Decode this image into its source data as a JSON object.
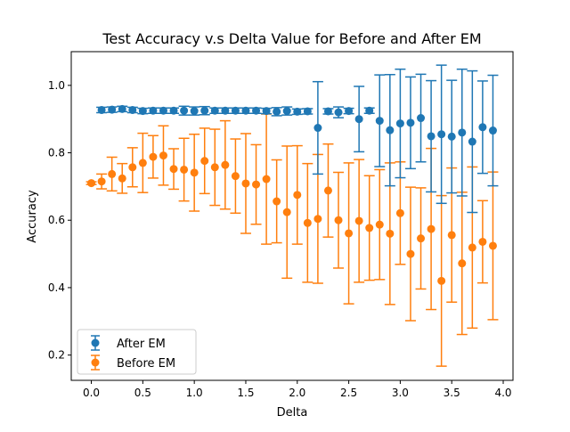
{
  "chart_data": {
    "type": "errorbar",
    "title": "Test Accuracy v.s Delta Value for Before and After EM",
    "xlabel": "Delta",
    "ylabel": "Accuracy",
    "xlim": [
      -0.195,
      4.095
    ],
    "ylim": [
      0.125,
      1.1
    ],
    "xticks": [
      0.0,
      0.5,
      1.0,
      1.5,
      2.0,
      2.5,
      3.0,
      3.5,
      4.0
    ],
    "xtick_labels": [
      "0.0",
      "0.5",
      "1.0",
      "1.5",
      "2.0",
      "2.5",
      "3.0",
      "3.5",
      "4.0"
    ],
    "yticks": [
      0.2,
      0.4,
      0.6,
      0.8,
      1.0
    ],
    "ytick_labels": [
      "0.2",
      "0.4",
      "0.6",
      "0.8",
      "1.0"
    ],
    "grid": false,
    "legend_position": "lower-left",
    "series": [
      {
        "name": "After EM",
        "color": "#1f77b4",
        "points": [
          {
            "x": 0.1,
            "y": 0.927,
            "err": 0.008
          },
          {
            "x": 0.2,
            "y": 0.928,
            "err": 0.008
          },
          {
            "x": 0.3,
            "y": 0.93,
            "err": 0.008
          },
          {
            "x": 0.4,
            "y": 0.927,
            "err": 0.008
          },
          {
            "x": 0.5,
            "y": 0.924,
            "err": 0.008
          },
          {
            "x": 0.6,
            "y": 0.925,
            "err": 0.008
          },
          {
            "x": 0.7,
            "y": 0.925,
            "err": 0.008
          },
          {
            "x": 0.8,
            "y": 0.925,
            "err": 0.008
          },
          {
            "x": 0.9,
            "y": 0.925,
            "err": 0.013
          },
          {
            "x": 1.0,
            "y": 0.924,
            "err": 0.012
          },
          {
            "x": 1.1,
            "y": 0.925,
            "err": 0.012
          },
          {
            "x": 1.2,
            "y": 0.925,
            "err": 0.008
          },
          {
            "x": 1.3,
            "y": 0.925,
            "err": 0.008
          },
          {
            "x": 1.4,
            "y": 0.925,
            "err": 0.008
          },
          {
            "x": 1.5,
            "y": 0.925,
            "err": 0.008
          },
          {
            "x": 1.6,
            "y": 0.925,
            "err": 0.008
          },
          {
            "x": 1.7,
            "y": 0.924,
            "err": 0.008
          },
          {
            "x": 1.8,
            "y": 0.922,
            "err": 0.012
          },
          {
            "x": 1.9,
            "y": 0.924,
            "err": 0.012
          },
          {
            "x": 2.0,
            "y": 0.922,
            "err": 0.008
          },
          {
            "x": 2.1,
            "y": 0.923,
            "err": 0.008
          },
          {
            "x": 2.2,
            "y": 0.874,
            "err": 0.137
          },
          {
            "x": 2.3,
            "y": 0.923,
            "err": 0.008
          },
          {
            "x": 2.4,
            "y": 0.92,
            "err": 0.016
          },
          {
            "x": 2.5,
            "y": 0.924,
            "err": 0.008
          },
          {
            "x": 2.6,
            "y": 0.9,
            "err": 0.097
          },
          {
            "x": 2.7,
            "y": 0.925,
            "err": 0.008
          },
          {
            "x": 2.8,
            "y": 0.895,
            "err": 0.136
          },
          {
            "x": 2.9,
            "y": 0.867,
            "err": 0.165
          },
          {
            "x": 3.0,
            "y": 0.887,
            "err": 0.161
          },
          {
            "x": 3.1,
            "y": 0.889,
            "err": 0.136
          },
          {
            "x": 3.2,
            "y": 0.903,
            "err": 0.13
          },
          {
            "x": 3.3,
            "y": 0.849,
            "err": 0.165
          },
          {
            "x": 3.4,
            "y": 0.855,
            "err": 0.205
          },
          {
            "x": 3.5,
            "y": 0.848,
            "err": 0.167
          },
          {
            "x": 3.6,
            "y": 0.86,
            "err": 0.188
          },
          {
            "x": 3.7,
            "y": 0.833,
            "err": 0.21
          },
          {
            "x": 3.8,
            "y": 0.876,
            "err": 0.137
          },
          {
            "x": 3.9,
            "y": 0.866,
            "err": 0.164
          }
        ]
      },
      {
        "name": "Before EM",
        "color": "#ff7f0e",
        "points": [
          {
            "x": 0.0,
            "y": 0.71,
            "err": 0.004
          },
          {
            "x": 0.1,
            "y": 0.715,
            "err": 0.022
          },
          {
            "x": 0.2,
            "y": 0.737,
            "err": 0.05
          },
          {
            "x": 0.3,
            "y": 0.724,
            "err": 0.044
          },
          {
            "x": 0.4,
            "y": 0.757,
            "err": 0.058
          },
          {
            "x": 0.5,
            "y": 0.77,
            "err": 0.088
          },
          {
            "x": 0.6,
            "y": 0.788,
            "err": 0.063
          },
          {
            "x": 0.7,
            "y": 0.792,
            "err": 0.088
          },
          {
            "x": 0.8,
            "y": 0.752,
            "err": 0.06
          },
          {
            "x": 0.9,
            "y": 0.75,
            "err": 0.093
          },
          {
            "x": 1.0,
            "y": 0.741,
            "err": 0.114
          },
          {
            "x": 1.1,
            "y": 0.776,
            "err": 0.097
          },
          {
            "x": 1.2,
            "y": 0.757,
            "err": 0.113
          },
          {
            "x": 1.3,
            "y": 0.764,
            "err": 0.131
          },
          {
            "x": 1.4,
            "y": 0.731,
            "err": 0.11
          },
          {
            "x": 1.5,
            "y": 0.709,
            "err": 0.148
          },
          {
            "x": 1.6,
            "y": 0.706,
            "err": 0.118
          },
          {
            "x": 1.7,
            "y": 0.722,
            "err": 0.193
          },
          {
            "x": 1.8,
            "y": 0.656,
            "err": 0.123
          },
          {
            "x": 1.9,
            "y": 0.624,
            "err": 0.196
          },
          {
            "x": 2.0,
            "y": 0.675,
            "err": 0.146
          },
          {
            "x": 2.1,
            "y": 0.592,
            "err": 0.176
          },
          {
            "x": 2.2,
            "y": 0.604,
            "err": 0.191
          },
          {
            "x": 2.3,
            "y": 0.688,
            "err": 0.138
          },
          {
            "x": 2.4,
            "y": 0.6,
            "err": 0.142
          },
          {
            "x": 2.5,
            "y": 0.561,
            "err": 0.209
          },
          {
            "x": 2.6,
            "y": 0.598,
            "err": 0.182
          },
          {
            "x": 2.7,
            "y": 0.577,
            "err": 0.155
          },
          {
            "x": 2.8,
            "y": 0.587,
            "err": 0.163
          },
          {
            "x": 2.9,
            "y": 0.56,
            "err": 0.21
          },
          {
            "x": 3.0,
            "y": 0.621,
            "err": 0.152
          },
          {
            "x": 3.1,
            "y": 0.5,
            "err": 0.198
          },
          {
            "x": 3.2,
            "y": 0.546,
            "err": 0.15
          },
          {
            "x": 3.3,
            "y": 0.574,
            "err": 0.239
          },
          {
            "x": 3.4,
            "y": 0.42,
            "err": 0.253
          },
          {
            "x": 3.5,
            "y": 0.556,
            "err": 0.199
          },
          {
            "x": 3.6,
            "y": 0.472,
            "err": 0.211
          },
          {
            "x": 3.7,
            "y": 0.519,
            "err": 0.239
          },
          {
            "x": 3.8,
            "y": 0.536,
            "err": 0.122
          },
          {
            "x": 3.9,
            "y": 0.524,
            "err": 0.219
          }
        ]
      }
    ]
  }
}
